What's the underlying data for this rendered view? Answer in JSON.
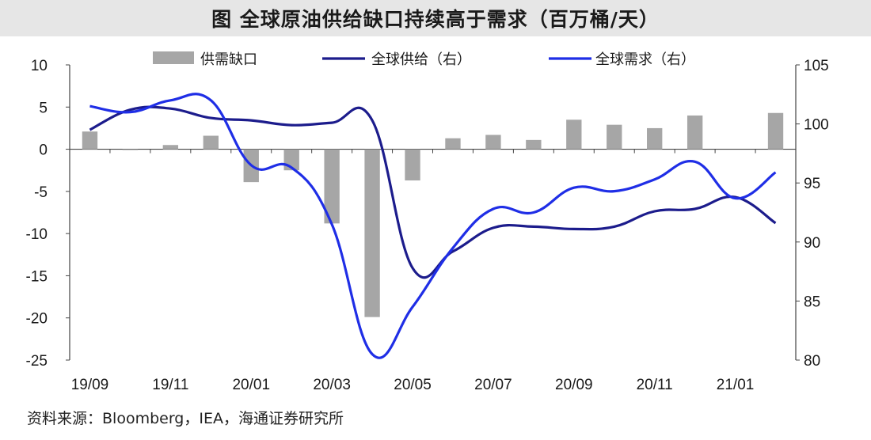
{
  "title": "图  全球原油供给缺口持续高于需求（百万桶/天）",
  "source": "资料来源：Bloomberg，IEA，海通证券研究所",
  "chart_data": {
    "type": "bar+line",
    "categories": [
      "19/09",
      "19/10",
      "19/11",
      "19/12",
      "20/01",
      "20/02",
      "20/03",
      "20/04",
      "20/05",
      "20/06",
      "20/07",
      "20/08",
      "20/09",
      "20/10",
      "20/11",
      "20/12",
      "21/01",
      "21/02"
    ],
    "x_tick_labels": [
      "19/09",
      "19/11",
      "20/01",
      "20/03",
      "20/05",
      "20/07",
      "20/09",
      "20/11",
      "21/01"
    ],
    "left_axis": {
      "min": -25,
      "max": 10,
      "ticks": [
        10,
        5,
        0,
        -5,
        -10,
        -15,
        -20,
        -25
      ]
    },
    "right_axis": {
      "min": 80,
      "max": 105,
      "ticks": [
        105,
        100,
        95,
        90,
        85,
        80
      ]
    },
    "series": [
      {
        "name": "供需缺口",
        "type": "bar",
        "axis": "left",
        "color": "#a6a6a6",
        "values": [
          2.1,
          -0.1,
          0.5,
          1.6,
          -3.9,
          -2.5,
          -8.8,
          -19.9,
          -3.7,
          1.3,
          1.7,
          1.1,
          3.5,
          2.9,
          2.5,
          4.0,
          null,
          4.3
        ]
      },
      {
        "name": "全球供给（右）",
        "type": "line",
        "axis": "right",
        "color": "#1c1c8c",
        "values": [
          99.5,
          101.2,
          101.3,
          100.5,
          100.3,
          99.9,
          100.1,
          100.3,
          87.8,
          89.2,
          91.2,
          91.3,
          91.1,
          91.3,
          92.6,
          92.8,
          93.8,
          91.6
        ]
      },
      {
        "name": "全球需求（右）",
        "type": "line",
        "axis": "right",
        "color": "#1f2ee6",
        "values": [
          101.5,
          101.0,
          102.0,
          102.0,
          96.5,
          96.3,
          91.5,
          80.5,
          84.5,
          89.5,
          92.8,
          92.5,
          94.6,
          94.3,
          95.3,
          96.8,
          93.7,
          95.9
        ]
      }
    ]
  }
}
